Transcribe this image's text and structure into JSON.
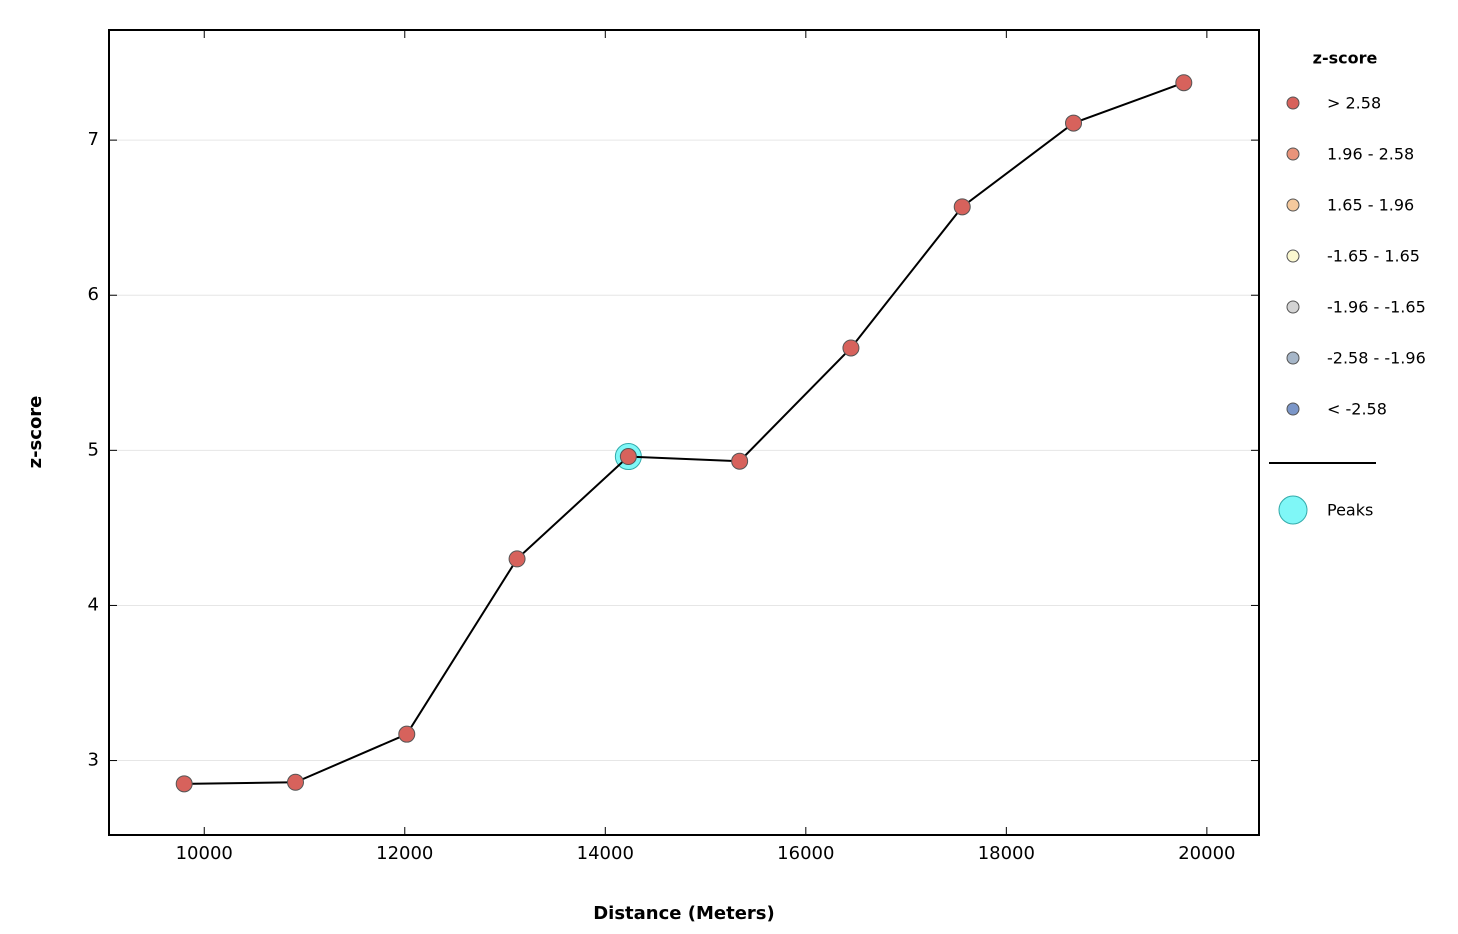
{
  "chart_data": {
    "type": "line",
    "x_label": "Distance (Meters)",
    "y_label": "z-score",
    "x": [
      9800,
      10910,
      12020,
      13120,
      14230,
      15340,
      16450,
      17560,
      18670,
      19770
    ],
    "series": [
      {
        "color": "#000000",
        "marker_color": "#d7625c",
        "values": [
          2.85,
          2.86,
          3.17,
          4.3,
          4.96,
          4.93,
          5.66,
          6.57,
          7.11,
          7.37
        ]
      },
      {
        "name": "Peaks",
        "color": "#7ff7f7",
        "x": [
          14230
        ],
        "values": [
          4.96
        ]
      }
    ],
    "xlim": [
      9050,
      20520
    ],
    "xticks": [
      10000,
      12000,
      14000,
      16000,
      18000,
      20000
    ],
    "ylim": [
      2.52,
      7.71
    ],
    "yticks": [
      3,
      4,
      5,
      6,
      7
    ],
    "grid": true,
    "legend": {
      "title": "z-score",
      "classes": [
        {
          "label": "> 2.58",
          "color": "#d7625c"
        },
        {
          "label": "1.96 - 2.58",
          "color": "#e8937a"
        },
        {
          "label": "1.65 - 1.96",
          "color": "#f5c99d"
        },
        {
          "label": "-1.65 - 1.65",
          "color": "#fbf8d0"
        },
        {
          "label": "-1.96 - -1.65",
          "color": "#d3d3d3"
        },
        {
          "label": "-2.58 - -1.96",
          "color": "#a6b6c8"
        },
        {
          "label": "< -2.58",
          "color": "#7b96c8"
        }
      ]
    }
  }
}
